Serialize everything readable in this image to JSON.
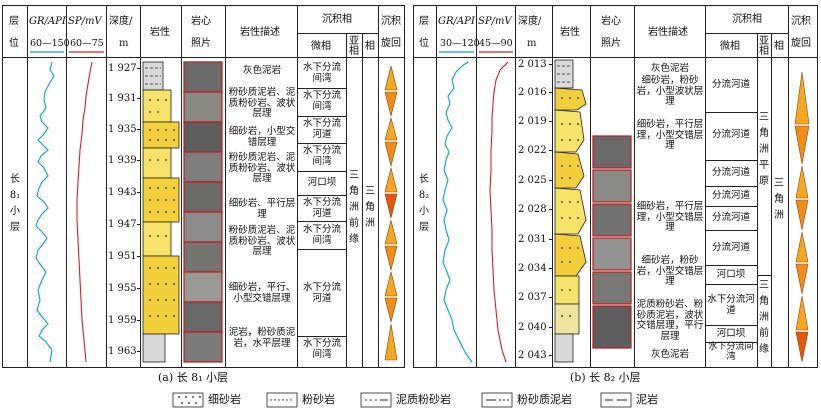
{
  "columns": {
    "layer_top": "层",
    "layer_bot": "位",
    "gr": "GR/API",
    "sp": "SP/mV",
    "depth_top": "深度/",
    "depth_bot": "m",
    "lith": "岩性",
    "core_top": "岩心",
    "core_bot": "照片",
    "desc": "岩性描述",
    "facies": "沉积相",
    "microfacies": "微相",
    "subfacies_top": "亚",
    "subfacies_bot": "相",
    "phase": "相",
    "cycle_top": "沉积",
    "cycle_bot": "旋回"
  },
  "left": {
    "gr_range": "60—150",
    "sp_range": "60—75",
    "layer_label": "长8₁小层",
    "depths": [
      "1 927",
      "1 931",
      "1 935",
      "1 939",
      "1 943",
      "1 947",
      "1 951",
      "1 955",
      "1 959",
      "1 963"
    ],
    "descs": [
      "灰色泥岩",
      "粉砂质泥岩、泥质粉砂岩、波状层理",
      "细砂岩，小型交错层理",
      "粉砂质泥岩、泥质粉砂岩、波状层理",
      "细砂岩、平行层理",
      "粉砂质泥岩、泥质粉砂岩、波状层理",
      "细砂岩，平行、小型交错层理",
      "泥岩，粉砂质泥岩，水平层理"
    ],
    "micro": [
      "水下分流间湾",
      "水下分流间湾",
      "水下分流河道",
      "水下分流间湾",
      "河口坝",
      "水下分流河道",
      "水下分流间湾",
      "水下分流河道",
      "水下分流间湾"
    ],
    "subfacies": "三角洲前缘",
    "phase": "三角洲",
    "caption": "(a) 长 8₁ 小层"
  },
  "right": {
    "gr_range": "30—120",
    "sp_range": "45—90",
    "layer_label": "长8₂小层",
    "depths": [
      "2 013",
      "2 016",
      "2 019",
      "2 022",
      "2 025",
      "2 028",
      "2 031",
      "2 034",
      "2 037",
      "2 040",
      "2 043"
    ],
    "descs": [
      "灰色泥岩",
      "细砂岩，粉砂岩，小型波状层理",
      "细砂岩，平行层理，小型交错层理",
      "细砂岩，平行层理，小型交错层理",
      "细砂岩，粉砂岩，小型交错层理",
      "泥质粉砂岩、粉砂质泥岩，波状交错层理，平行层理",
      "灰色泥岩"
    ],
    "micro": [
      "分流河道",
      "分流河道",
      "分流河道",
      "分流河道",
      "分流河道",
      "分流河道",
      "河口坝",
      "水下分流河道",
      "河口坝",
      "水下分流间湾"
    ],
    "subfacies_top": "三角洲平原",
    "subfacies_bot": "三角洲前缘",
    "phase": "三角洲",
    "caption": "(b) 长 8₂ 小层"
  },
  "legend": [
    "细砂岩",
    "粉砂岩",
    "泥质粉砂岩",
    "粉砂质泥岩",
    "泥岩"
  ]
}
